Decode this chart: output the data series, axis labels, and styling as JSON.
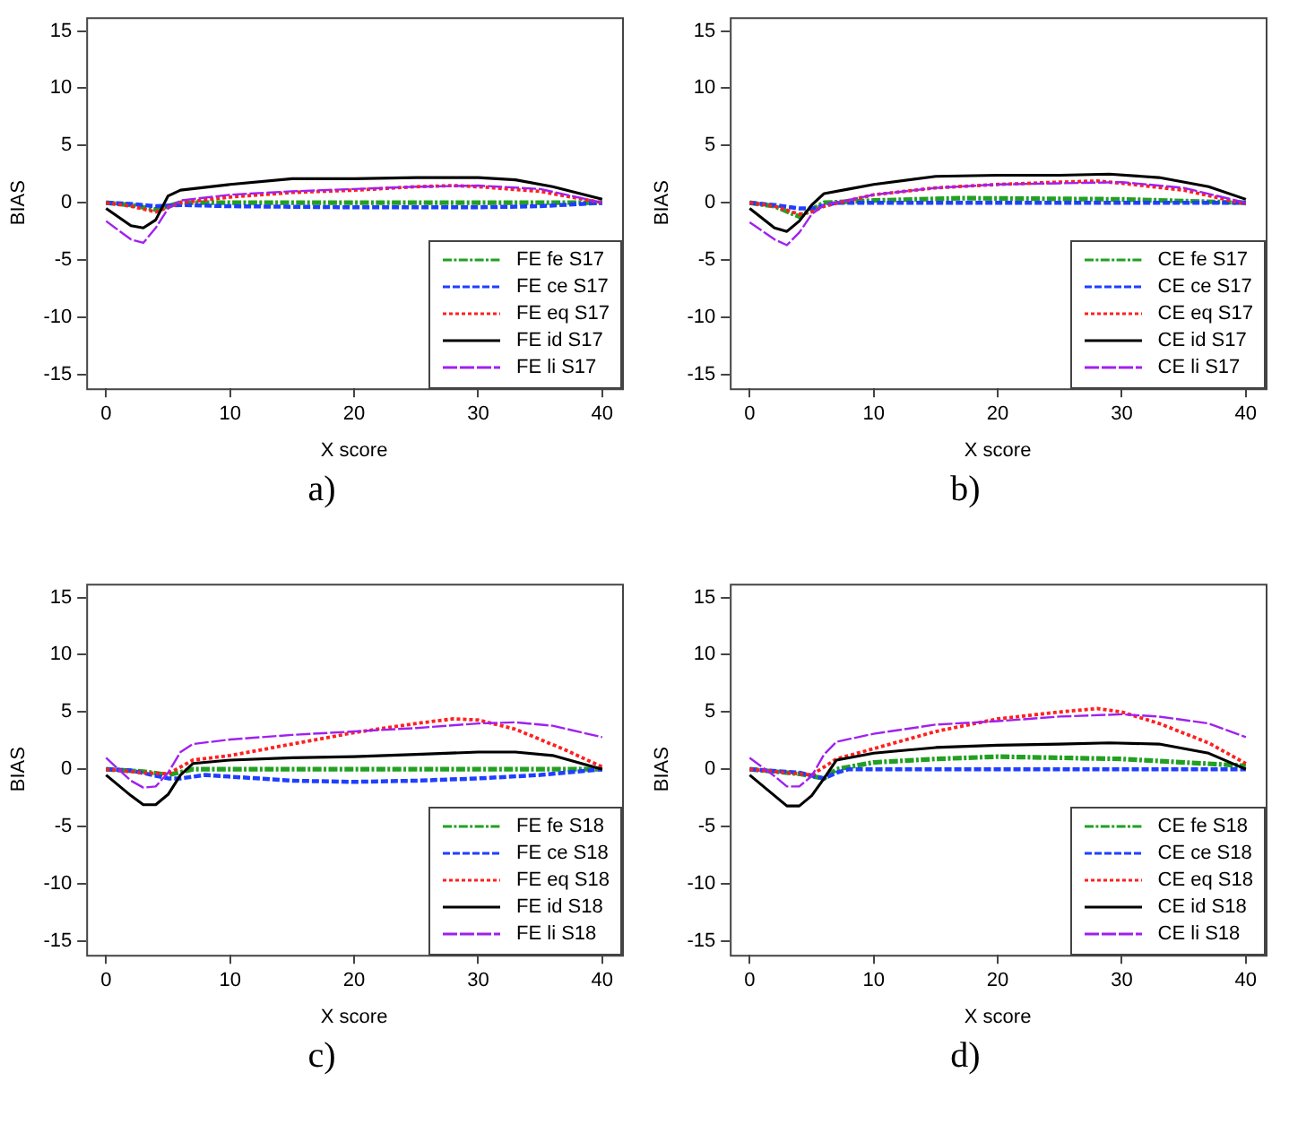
{
  "chart_data": [
    {
      "type": "line",
      "xlabel": "X score",
      "ylabel": "BIAS",
      "xlim": [
        -1.6,
        41.6
      ],
      "ylim": [
        -16.2,
        16.2
      ],
      "xticks": [
        0,
        10,
        20,
        30,
        40
      ],
      "yticks": [
        -15,
        -10,
        -5,
        0,
        5,
        10,
        15
      ],
      "grid": false,
      "legend": "bottom right",
      "marker": "none",
      "annotations": [
        "a)"
      ],
      "series": [
        {
          "name": "FE fe S17",
          "color": "#22a022",
          "line_style": "dashdot",
          "x": [
            0,
            2,
            4,
            6,
            10,
            20,
            30,
            35,
            40
          ],
          "values": [
            0,
            -0.2,
            -0.6,
            0,
            0,
            0,
            0,
            0,
            0
          ]
        },
        {
          "name": "FE ce S17",
          "color": "#1f3fff",
          "line_style": "dashed",
          "x": [
            0,
            2,
            4,
            6,
            10,
            20,
            30,
            35,
            40
          ],
          "values": [
            0,
            -0.1,
            -0.3,
            -0.2,
            -0.3,
            -0.4,
            -0.4,
            -0.3,
            0
          ]
        },
        {
          "name": "FE eq S17",
          "color": "#ff2020",
          "line_style": "dotted",
          "x": [
            0,
            2,
            4,
            6,
            10,
            15,
            20,
            25,
            28,
            30,
            35,
            40
          ],
          "values": [
            0,
            -0.3,
            -0.8,
            0,
            0.5,
            0.9,
            1.1,
            1.4,
            1.5,
            1.4,
            1.0,
            0
          ]
        },
        {
          "name": "FE id S17",
          "color": "#000000",
          "line_style": "solid",
          "x": [
            0,
            2,
            3,
            4,
            5,
            6,
            10,
            15,
            20,
            25,
            30,
            33,
            36,
            40
          ],
          "values": [
            -0.5,
            -2.0,
            -2.2,
            -1.5,
            0.6,
            1.1,
            1.6,
            2.1,
            2.1,
            2.2,
            2.2,
            2.0,
            1.4,
            0.3
          ]
        },
        {
          "name": "FE li S17",
          "color": "#a020f0",
          "line_style": "longdash",
          "x": [
            0,
            2,
            3,
            4,
            5,
            6,
            10,
            15,
            20,
            25,
            30,
            35,
            40
          ],
          "values": [
            -1.6,
            -3.2,
            -3.5,
            -2.2,
            -0.5,
            0.2,
            0.7,
            1.0,
            1.2,
            1.4,
            1.5,
            1.2,
            0
          ]
        }
      ]
    },
    {
      "type": "line",
      "xlabel": "X score",
      "ylabel": "BIAS",
      "xlim": [
        -1.6,
        41.6
      ],
      "ylim": [
        -16.2,
        16.2
      ],
      "xticks": [
        0,
        10,
        20,
        30,
        40
      ],
      "yticks": [
        -15,
        -10,
        -5,
        0,
        5,
        10,
        15
      ],
      "grid": false,
      "legend": "bottom right",
      "marker": "none",
      "annotations": [
        "b)"
      ],
      "series": [
        {
          "name": "CE fe S17",
          "color": "#22a022",
          "line_style": "dashdot",
          "x": [
            0,
            2,
            4,
            6,
            10,
            17,
            30,
            40
          ],
          "values": [
            0,
            -0.3,
            -1.2,
            0,
            0.2,
            0.4,
            0.3,
            0
          ]
        },
        {
          "name": "CE ce S17",
          "color": "#1f3fff",
          "line_style": "dashed",
          "x": [
            0,
            2,
            4,
            5,
            7,
            20,
            40
          ],
          "values": [
            0,
            -0.2,
            -0.5,
            -0.5,
            0,
            0,
            0
          ]
        },
        {
          "name": "CE eq S17",
          "color": "#ff2020",
          "line_style": "dotted",
          "x": [
            0,
            2,
            4,
            5,
            6,
            10,
            15,
            20,
            25,
            28,
            30,
            35,
            40
          ],
          "values": [
            0,
            -0.3,
            -1.0,
            -0.8,
            -0.3,
            0.7,
            1.3,
            1.6,
            1.8,
            1.9,
            1.7,
            1.1,
            -0.1
          ]
        },
        {
          "name": "CE id S17",
          "color": "#000000",
          "line_style": "solid",
          "x": [
            0,
            2,
            3,
            4,
            5,
            6,
            8,
            10,
            15,
            20,
            25,
            29,
            33,
            37,
            40
          ],
          "values": [
            -0.5,
            -2.2,
            -2.5,
            -1.6,
            -0.2,
            0.8,
            1.2,
            1.6,
            2.3,
            2.4,
            2.4,
            2.5,
            2.2,
            1.4,
            0.3
          ]
        },
        {
          "name": "CE li S17",
          "color": "#a020f0",
          "line_style": "longdash",
          "x": [
            0,
            2,
            3,
            4,
            5,
            6,
            10,
            15,
            20,
            25,
            30,
            35,
            40
          ],
          "values": [
            -1.7,
            -3.2,
            -3.7,
            -2.6,
            -1.0,
            -0.2,
            0.7,
            1.3,
            1.6,
            1.7,
            1.8,
            1.3,
            0
          ]
        }
      ]
    },
    {
      "type": "line",
      "xlabel": "X score",
      "ylabel": "BIAS",
      "xlim": [
        -1.6,
        41.6
      ],
      "ylim": [
        -16.2,
        16.2
      ],
      "xticks": [
        0,
        10,
        20,
        30,
        40
      ],
      "yticks": [
        -15,
        -10,
        -5,
        0,
        5,
        10,
        15
      ],
      "grid": false,
      "legend": "bottom right",
      "marker": "none",
      "annotations": [
        "c)"
      ],
      "series": [
        {
          "name": "FE fe S18",
          "color": "#22a022",
          "line_style": "dashdot",
          "x": [
            0,
            3,
            5,
            7,
            20,
            40
          ],
          "values": [
            0,
            -0.2,
            -0.5,
            0,
            0,
            0
          ]
        },
        {
          "name": "FE ce S18",
          "color": "#1f3fff",
          "line_style": "dashed",
          "x": [
            0,
            2,
            5,
            6,
            8,
            15,
            20,
            25,
            30,
            35,
            40
          ],
          "values": [
            0,
            -0.1,
            -0.8,
            -0.8,
            -0.5,
            -1.0,
            -1.1,
            -1.0,
            -0.8,
            -0.5,
            0
          ]
        },
        {
          "name": "FE eq S18",
          "color": "#ff2020",
          "line_style": "dotted",
          "x": [
            0,
            3,
            5,
            7,
            10,
            15,
            20,
            25,
            28,
            30,
            33,
            37,
            40
          ],
          "values": [
            0,
            -0.3,
            -0.4,
            0.8,
            1.2,
            2.2,
            3.2,
            4.0,
            4.4,
            4.3,
            3.5,
            1.7,
            0.2
          ]
        },
        {
          "name": "FE id S18",
          "color": "#000000",
          "line_style": "solid",
          "x": [
            0,
            2,
            3,
            4,
            5,
            6,
            7,
            10,
            15,
            20,
            25,
            30,
            33,
            36,
            40
          ],
          "values": [
            -0.5,
            -2.3,
            -3.1,
            -3.1,
            -2.2,
            -0.5,
            0.5,
            0.8,
            1.0,
            1.1,
            1.3,
            1.5,
            1.5,
            1.2,
            0
          ]
        },
        {
          "name": "FE li S18",
          "color": "#a020f0",
          "line_style": "longdash",
          "x": [
            0,
            1,
            2,
            3,
            4,
            5,
            6,
            7,
            10,
            15,
            20,
            25,
            30,
            33,
            36,
            40
          ],
          "values": [
            1.0,
            0,
            -1.0,
            -1.6,
            -1.5,
            -0.3,
            1.5,
            2.2,
            2.6,
            3.0,
            3.3,
            3.6,
            4.0,
            4.1,
            3.8,
            2.8
          ]
        }
      ]
    },
    {
      "type": "line",
      "xlabel": "X score",
      "ylabel": "BIAS",
      "xlim": [
        -1.6,
        41.6
      ],
      "ylim": [
        -16.2,
        16.2
      ],
      "xticks": [
        0,
        10,
        20,
        30,
        40
      ],
      "yticks": [
        -15,
        -10,
        -5,
        0,
        5,
        10,
        15
      ],
      "grid": false,
      "legend": "bottom right",
      "marker": "none",
      "annotations": [
        "d)"
      ],
      "series": [
        {
          "name": "CE fe S18",
          "color": "#22a022",
          "line_style": "dashdot",
          "x": [
            0,
            4,
            6,
            7,
            10,
            15,
            20,
            25,
            30,
            35,
            40
          ],
          "values": [
            0,
            -0.4,
            -0.8,
            0,
            0.6,
            0.9,
            1.1,
            1.0,
            0.9,
            0.6,
            0.3
          ]
        },
        {
          "name": "CE ce S18",
          "color": "#1f3fff",
          "line_style": "dashed",
          "x": [
            0,
            4,
            6,
            7,
            8,
            20,
            40
          ],
          "values": [
            0,
            -0.3,
            -0.8,
            -0.3,
            0,
            0,
            0
          ]
        },
        {
          "name": "CE eq S18",
          "color": "#ff2020",
          "line_style": "dotted",
          "x": [
            0,
            3,
            5,
            7,
            10,
            15,
            20,
            25,
            28,
            30,
            33,
            37,
            40
          ],
          "values": [
            0,
            -0.3,
            -0.5,
            0.9,
            1.8,
            3.3,
            4.4,
            5.0,
            5.3,
            5.0,
            4.0,
            2.3,
            0.5
          ]
        },
        {
          "name": "CE id S18",
          "color": "#000000",
          "line_style": "solid",
          "x": [
            0,
            2,
            3,
            4,
            5,
            6,
            7,
            10,
            15,
            20,
            25,
            29,
            33,
            37,
            40
          ],
          "values": [
            -0.5,
            -2.3,
            -3.2,
            -3.2,
            -2.3,
            -0.8,
            0.8,
            1.4,
            1.9,
            2.1,
            2.2,
            2.3,
            2.2,
            1.4,
            0
          ]
        },
        {
          "name": "CE li S18",
          "color": "#a020f0",
          "line_style": "longdash",
          "x": [
            0,
            1,
            2,
            3,
            4,
            5,
            6,
            7,
            10,
            15,
            20,
            25,
            30,
            33,
            37,
            40
          ],
          "values": [
            1.0,
            0.2,
            -0.6,
            -1.5,
            -1.5,
            -0.6,
            1.3,
            2.4,
            3.1,
            3.9,
            4.2,
            4.6,
            4.8,
            4.6,
            4.0,
            2.8
          ]
        }
      ]
    }
  ]
}
